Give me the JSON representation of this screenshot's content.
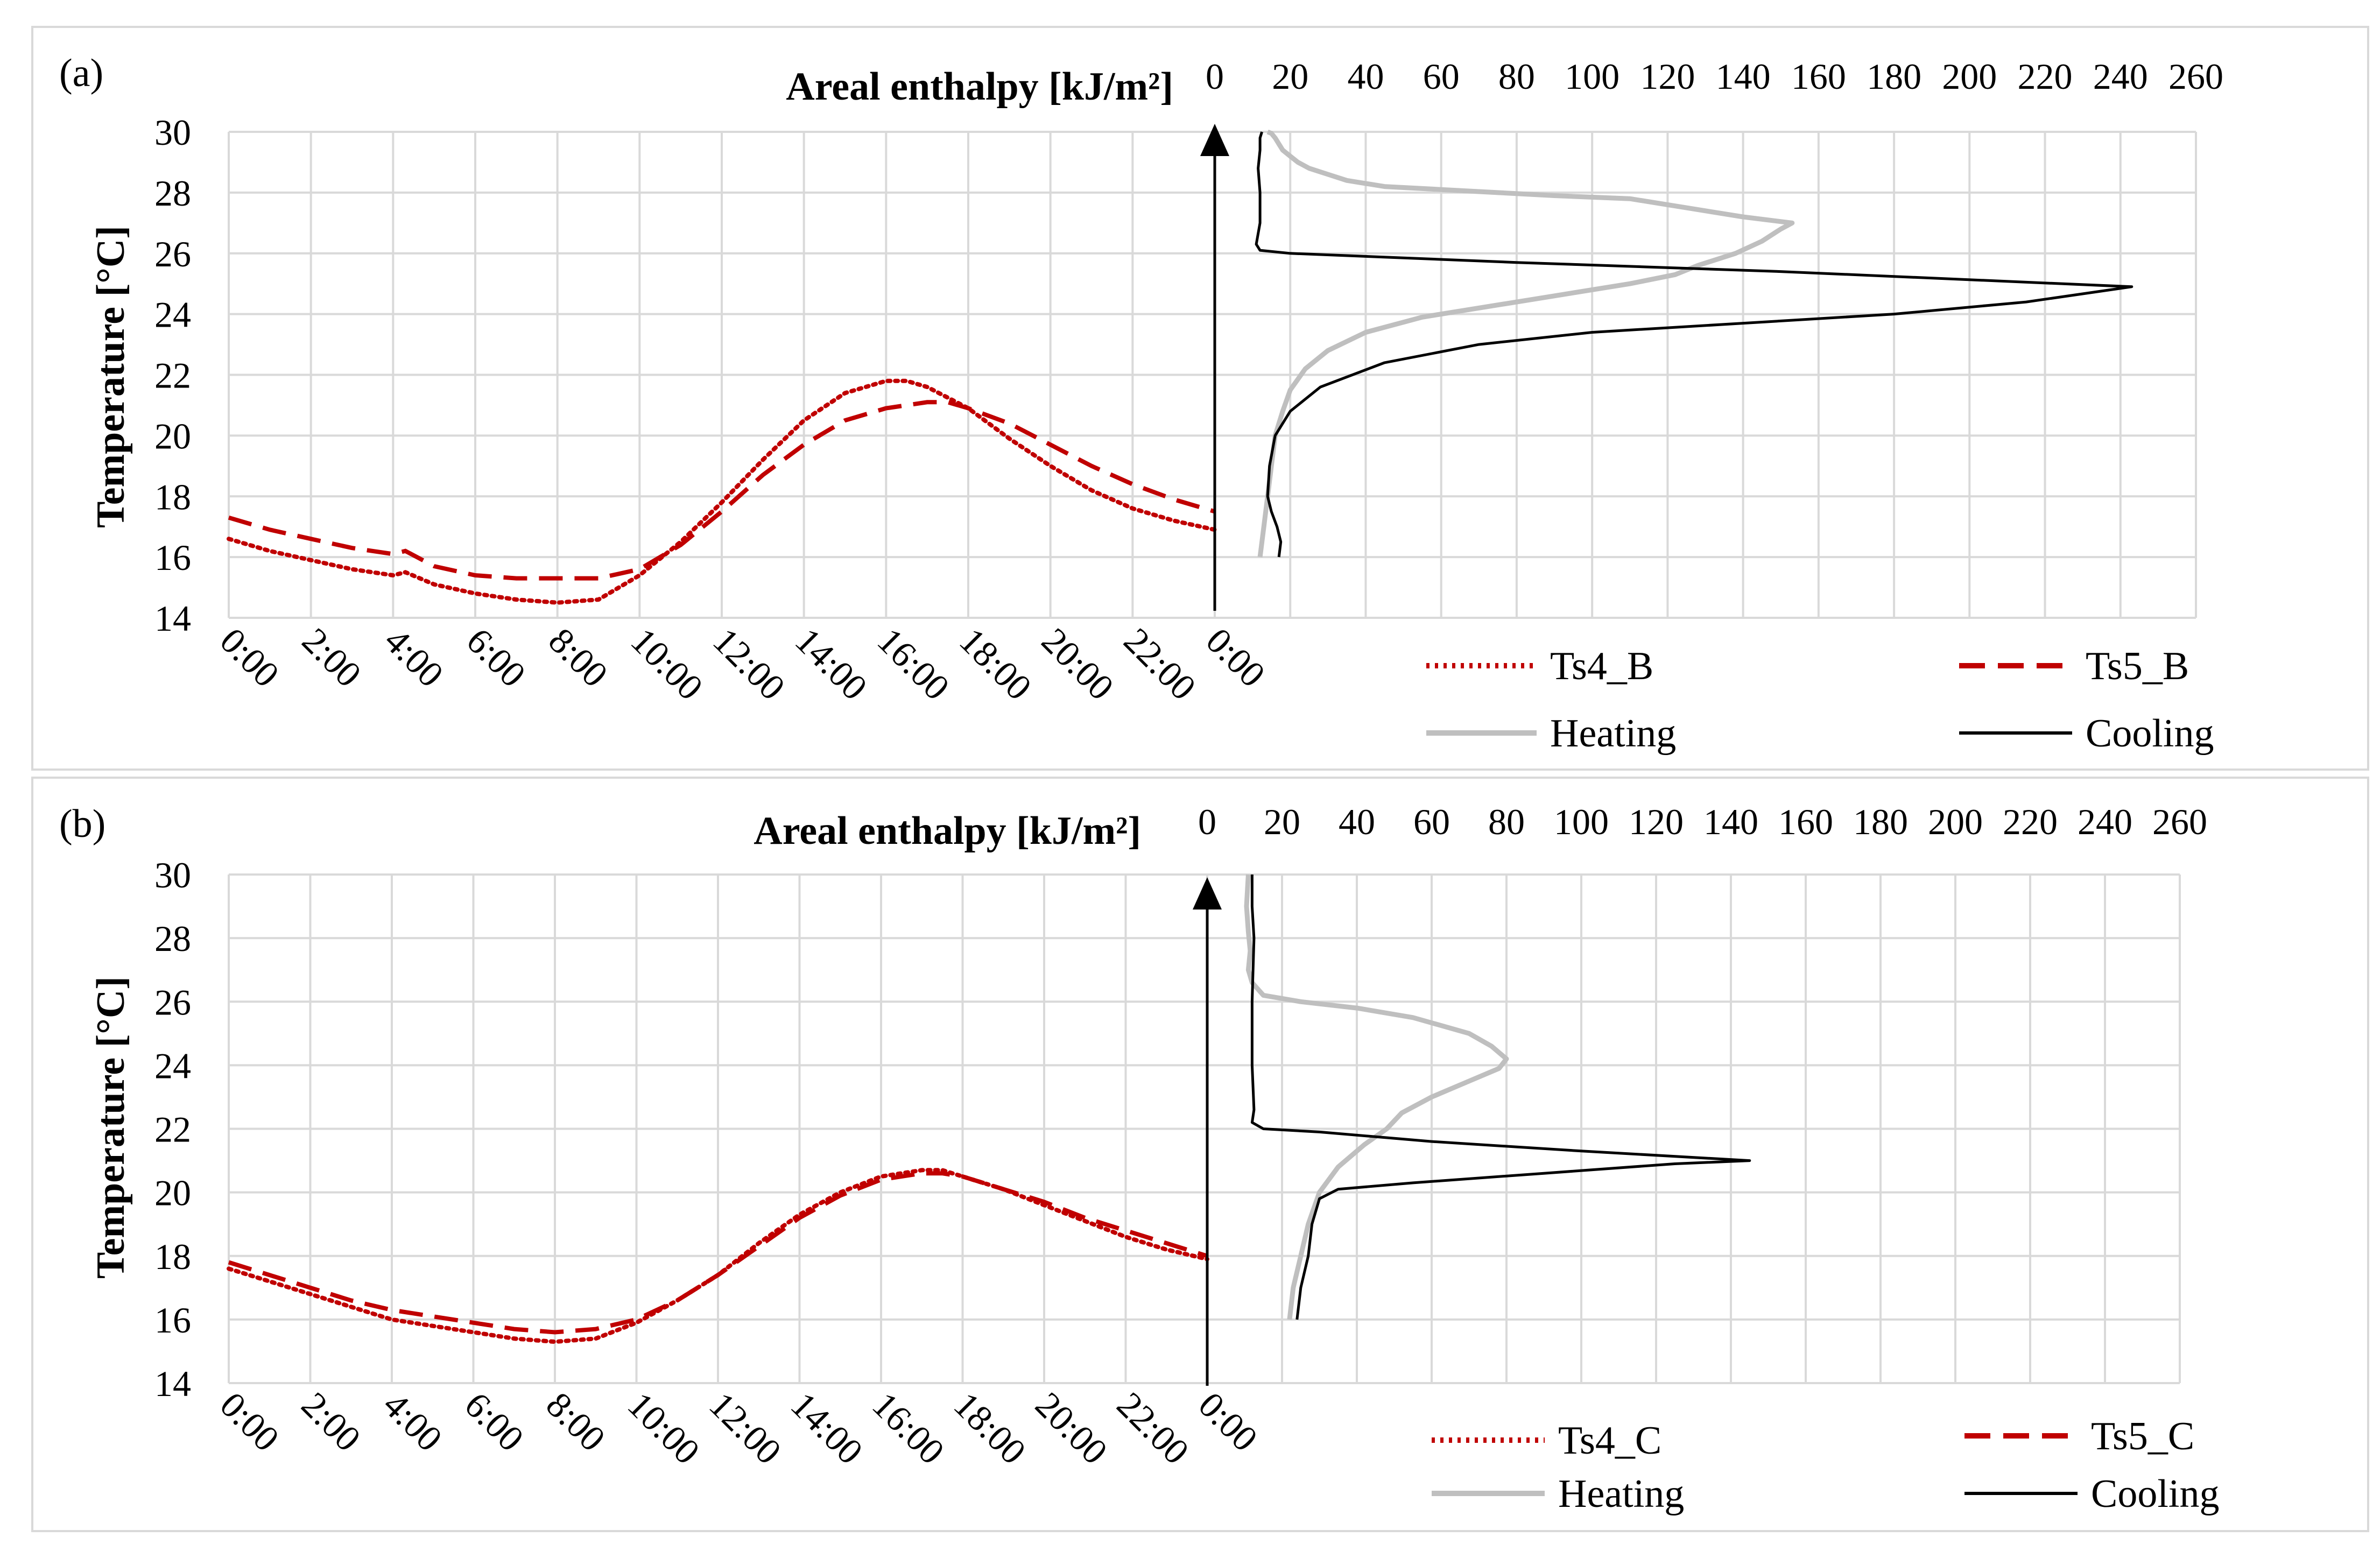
{
  "colors": {
    "ts4": "#c00000",
    "ts5": "#c00000",
    "heating": "#bfbfbf",
    "cooling": "#000000",
    "grid": "#d9d9d9"
  },
  "chart_data": [
    {
      "type": "line",
      "panel_label": "(a)",
      "ylabel": "Temperature [°C]",
      "ylim": [
        14,
        30
      ],
      "yticks": [
        14,
        16,
        18,
        20,
        22,
        24,
        26,
        28,
        30
      ],
      "time_chart": {
        "xlabel": "",
        "xlim": [
          0,
          24
        ],
        "xtick_labels": [
          "0:00",
          "2:00",
          "4:00",
          "6:00",
          "8:00",
          "10:00",
          "12:00",
          "14:00",
          "16:00",
          "18:00",
          "20:00",
          "22:00",
          "0:00"
        ],
        "series": [
          {
            "name": "Ts4_B",
            "style": "dotted",
            "x": [
              0,
              1,
              2,
              3,
              4,
              4.3,
              5,
              6,
              7,
              8,
              9,
              10,
              11,
              12,
              13,
              14,
              15,
              16,
              16.5,
              17,
              18,
              19,
              20,
              21,
              22,
              23,
              24
            ],
            "y": [
              16.6,
              16.2,
              15.9,
              15.6,
              15.4,
              15.5,
              15.1,
              14.8,
              14.6,
              14.5,
              14.6,
              15.4,
              16.5,
              17.8,
              19.2,
              20.5,
              21.4,
              21.8,
              21.8,
              21.6,
              20.9,
              19.9,
              19.0,
              18.2,
              17.6,
              17.2,
              16.9
            ]
          },
          {
            "name": "Ts5_B",
            "style": "dashed",
            "x": [
              0,
              1,
              2,
              3,
              4,
              4.3,
              5,
              6,
              7,
              8,
              9,
              10,
              11,
              12,
              13,
              14,
              15,
              16,
              17,
              17.5,
              18,
              19,
              20,
              21,
              22,
              23,
              24
            ],
            "y": [
              17.3,
              16.9,
              16.6,
              16.3,
              16.1,
              16.2,
              15.7,
              15.4,
              15.3,
              15.3,
              15.3,
              15.6,
              16.4,
              17.5,
              18.7,
              19.7,
              20.5,
              20.9,
              21.1,
              21.1,
              20.9,
              20.4,
              19.7,
              19.0,
              18.4,
              17.9,
              17.5
            ]
          }
        ]
      },
      "enthalpy_chart": {
        "xlabel": "Areal enthalpy [kJ/m²]",
        "xlim": [
          0,
          260
        ],
        "xtick_labels": [
          "0",
          "20",
          "40",
          "60",
          "80",
          "100",
          "120",
          "140",
          "160",
          "180",
          "200",
          "220",
          "240",
          "260"
        ],
        "series": [
          {
            "name": "Heating",
            "x": [
              12,
              13,
              14,
              15,
              16,
              18,
              20,
              24,
              30,
              40,
              55,
              70,
              90,
              110,
              122,
              128,
              138,
              145,
              150,
              153,
              140,
              125,
              110,
              90,
              75,
              60,
              45,
              35,
              30,
              25,
              22,
              20,
              18,
              17,
              16,
              15,
              14
            ],
            "y": [
              16.0,
              17.0,
              18.0,
              19.0,
              20.0,
              20.8,
              21.5,
              22.2,
              22.8,
              23.4,
              23.9,
              24.2,
              24.6,
              25.0,
              25.3,
              25.6,
              26.0,
              26.4,
              26.8,
              27.0,
              27.2,
              27.5,
              27.8,
              27.9,
              28.0,
              28.1,
              28.2,
              28.4,
              28.6,
              28.8,
              29.0,
              29.2,
              29.4,
              29.6,
              29.8,
              29.95,
              30.0
            ]
          },
          {
            "name": "Cooling",
            "x": [
              17,
              17.5,
              16.5,
              15,
              14,
              14.5,
              16,
              20,
              28,
              45,
              70,
              100,
              140,
              180,
              215,
              243,
              150,
              80,
              40,
              20,
              12,
              11,
              12,
              12,
              11.5,
              12,
              12,
              12.5
            ],
            "y": [
              16.0,
              16.5,
              17.0,
              17.5,
              18.0,
              19.0,
              20.0,
              20.8,
              21.6,
              22.4,
              23.0,
              23.4,
              23.7,
              24.0,
              24.4,
              24.9,
              25.4,
              25.7,
              25.9,
              26.0,
              26.1,
              26.3,
              27.0,
              28.0,
              28.8,
              29.4,
              29.8,
              30.0
            ]
          }
        ]
      }
    },
    {
      "type": "line",
      "panel_label": "(b)",
      "ylabel": "Temperature [°C]",
      "ylim": [
        14,
        30
      ],
      "yticks": [
        14,
        16,
        18,
        20,
        22,
        24,
        26,
        28,
        30
      ],
      "time_chart": {
        "xlabel": "",
        "xlim": [
          0,
          24
        ],
        "xtick_labels": [
          "0:00",
          "2:00",
          "4:00",
          "6:00",
          "8:00",
          "10:00",
          "12:00",
          "14:00",
          "16:00",
          "18:00",
          "20:00",
          "22:00",
          "0:00"
        ],
        "series": [
          {
            "name": "Ts4_C",
            "style": "dotted",
            "x": [
              0,
              1,
              2,
              3,
              4,
              5,
              6,
              7,
              8,
              9,
              10,
              11,
              12,
              13,
              14,
              15,
              16,
              17,
              17.5,
              18,
              19,
              20,
              21,
              22,
              23,
              24
            ],
            "y": [
              17.6,
              17.2,
              16.8,
              16.4,
              16.0,
              15.8,
              15.6,
              15.4,
              15.3,
              15.4,
              15.9,
              16.6,
              17.4,
              18.4,
              19.3,
              20.0,
              20.5,
              20.7,
              20.7,
              20.5,
              20.1,
              19.6,
              19.1,
              18.6,
              18.2,
              17.9
            ]
          },
          {
            "name": "Ts5_C",
            "style": "dashed",
            "x": [
              0,
              1,
              2,
              3,
              4,
              5,
              6,
              7,
              8,
              9,
              10,
              11,
              12,
              13,
              14,
              15,
              16,
              17,
              17.5,
              18,
              19,
              20,
              21,
              22,
              23,
              24
            ],
            "y": [
              17.8,
              17.4,
              17.0,
              16.6,
              16.3,
              16.1,
              15.9,
              15.7,
              15.6,
              15.7,
              16.0,
              16.6,
              17.4,
              18.3,
              19.2,
              19.9,
              20.4,
              20.6,
              20.6,
              20.5,
              20.1,
              19.7,
              19.2,
              18.8,
              18.4,
              18.0
            ]
          }
        ]
      },
      "enthalpy_chart": {
        "xlabel": "Areal enthalpy [kJ/m²]",
        "xlim": [
          0,
          260
        ],
        "xtick_labels": [
          "0",
          "20",
          "40",
          "60",
          "80",
          "100",
          "120",
          "140",
          "160",
          "180",
          "200",
          "220",
          "240",
          "260"
        ],
        "series": [
          {
            "name": "Heating",
            "x": [
              22,
              23,
              25,
              27,
              30,
              35,
              42,
              48,
              52,
              60,
              70,
              78,
              80,
              76,
              70,
              55,
              40,
              25,
              15,
              12,
              11,
              11.5,
              11,
              10.5,
              11
            ],
            "y": [
              16.0,
              17.0,
              18.0,
              19.0,
              20.0,
              20.8,
              21.5,
              22.0,
              22.5,
              23.0,
              23.5,
              23.9,
              24.2,
              24.6,
              25.0,
              25.5,
              25.8,
              26.0,
              26.2,
              26.6,
              27.0,
              27.6,
              28.2,
              29.0,
              30.0
            ]
          },
          {
            "name": "Cooling",
            "x": [
              24,
              25,
              27,
              28,
              30,
              35,
              55,
              90,
              125,
              145,
              100,
              60,
              30,
              15,
              12,
              12.5,
              12,
              12,
              12.5,
              12,
              12
            ],
            "y": [
              16.0,
              17.0,
              18.0,
              19.0,
              19.8,
              20.1,
              20.3,
              20.6,
              20.9,
              21.0,
              21.3,
              21.6,
              21.9,
              22.0,
              22.2,
              22.6,
              24.0,
              26.0,
              28.0,
              29.0,
              30.0
            ]
          }
        ]
      }
    }
  ]
}
